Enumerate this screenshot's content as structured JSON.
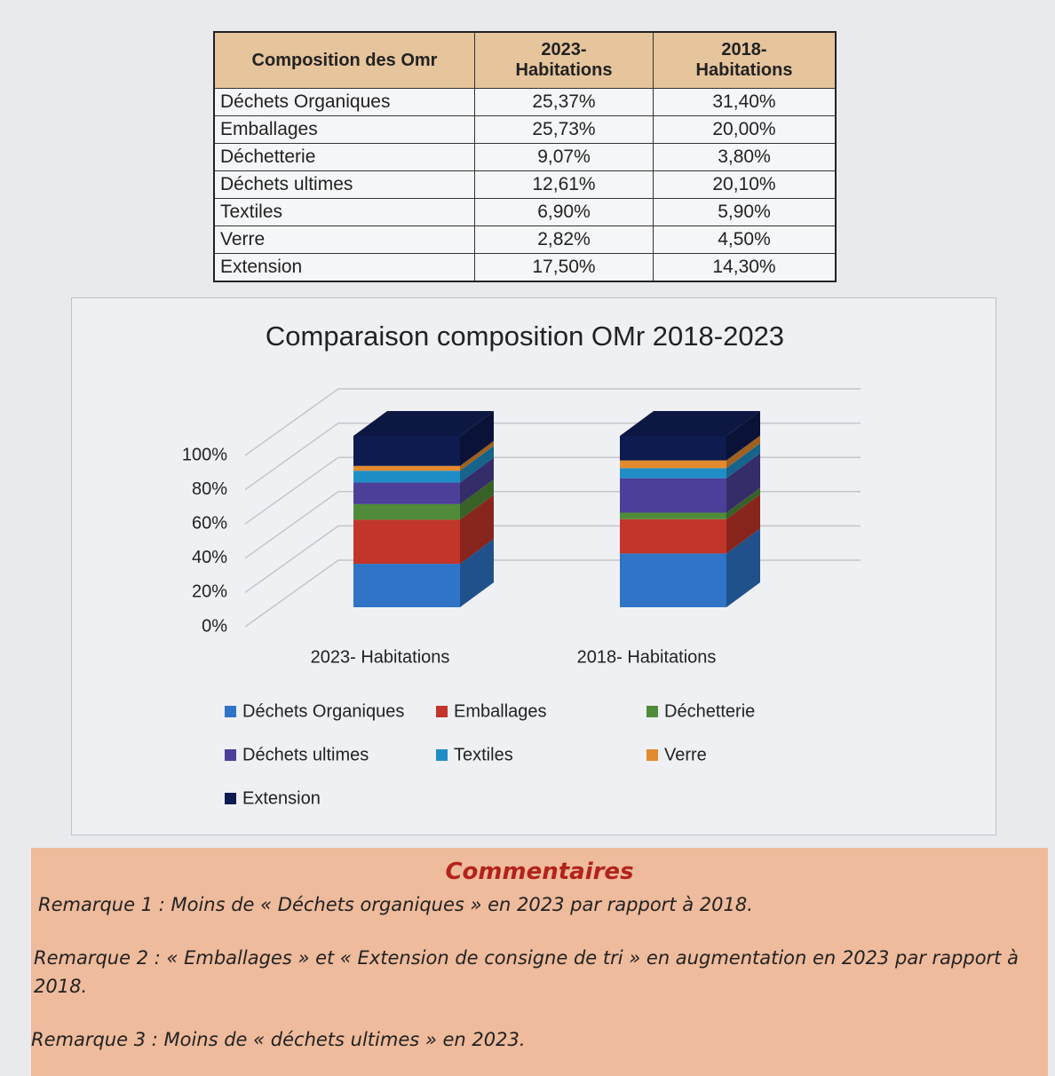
{
  "table": {
    "header": [
      "Composition des Omr",
      "2023- Habitations",
      "2018- Habitations"
    ],
    "rows": [
      [
        "Déchets Organiques",
        "25,37%",
        "31,40%"
      ],
      [
        "Emballages",
        "25,73%",
        "20,00%"
      ],
      [
        "Déchetterie",
        "9,07%",
        "3,80%"
      ],
      [
        "Déchets ultimes",
        "12,61%",
        "20,10%"
      ],
      [
        "Textiles",
        "6,90%",
        "5,90%"
      ],
      [
        "Verre",
        "2,82%",
        "4,50%"
      ],
      [
        "Extension",
        "17,50%",
        "14,30%"
      ]
    ]
  },
  "chart_data": {
    "type": "stacked_bar_3d",
    "title": "Comparaison composition OMr 2018-2023",
    "categories": [
      "2023- Habitations",
      "2018- Habitations"
    ],
    "series": [
      {
        "name": "Déchets Organiques",
        "color": "#2f74c6",
        "values": [
          25.37,
          31.4
        ]
      },
      {
        "name": "Emballages",
        "color": "#c2352a",
        "values": [
          25.73,
          20.0
        ]
      },
      {
        "name": "Déchetterie",
        "color": "#4f8b38",
        "values": [
          9.07,
          3.8
        ]
      },
      {
        "name": "Déchets ultimes",
        "color": "#4b3f98",
        "values": [
          12.61,
          20.1
        ]
      },
      {
        "name": "Textiles",
        "color": "#1f8ec6",
        "values": [
          6.9,
          5.9
        ]
      },
      {
        "name": "Verre",
        "color": "#e38a2e",
        "values": [
          2.82,
          4.5
        ]
      },
      {
        "name": "Extension",
        "color": "#0e1b4e",
        "values": [
          17.5,
          14.3
        ]
      }
    ],
    "ylim": [
      0,
      100
    ],
    "yticks": [
      {
        "value": 0,
        "label": "0%"
      },
      {
        "value": 20,
        "label": "20%"
      },
      {
        "value": 40,
        "label": "40%"
      },
      {
        "value": 60,
        "label": "60%"
      },
      {
        "value": 80,
        "label": "80%"
      },
      {
        "value": 100,
        "label": "100%"
      }
    ],
    "grid": true
  },
  "comments": {
    "title": "Commentaires",
    "remarks": [
      "Remarque 1 : Moins de « Déchets organiques » en 2023 par rapport à 2018.",
      "Remarque 2 : « Emballages » et «  Extension de consigne de tri » en augmentation en 2023 par rapport à 2018.",
      "Remarque 3 : Moins de « déchets ultimes » en 2023."
    ]
  }
}
